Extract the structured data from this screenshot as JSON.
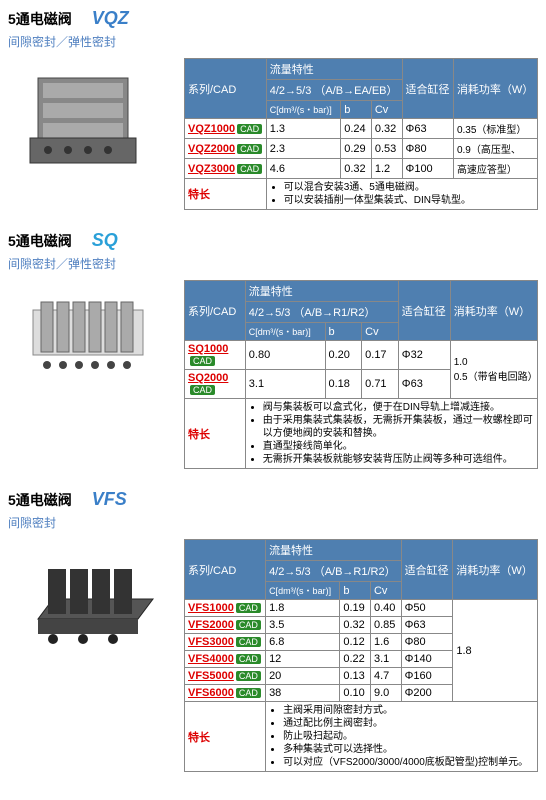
{
  "sections": [
    {
      "title_cn": "5通电磁阀",
      "title_en": "VQZ",
      "title_en_color": "#3a7fc8",
      "subtitle": "间隙密封／弹性密封",
      "subheader": "4/2→5/3 （A/B→EA/EB）",
      "cols": {
        "h1": "系列/CAD",
        "h2": "流量特性",
        "h3": "适合缸径",
        "h4": "消耗功率（W）",
        "sub1": "C[dm³/(s・bar)]",
        "sub2": "b",
        "sub3": "Cv"
      },
      "rows": [
        {
          "series": "VQZ1000",
          "c": "1.3",
          "b": "0.24",
          "cv": "0.32",
          "dia": "Φ63",
          "pw": "0.35（标准型）"
        },
        {
          "series": "VQZ2000",
          "c": "2.3",
          "b": "0.29",
          "cv": "0.53",
          "dia": "Φ80",
          "pw": "0.9（高压型、"
        },
        {
          "series": "VQZ3000",
          "c": "4.6",
          "b": "0.32",
          "cv": "1.2",
          "dia": "Φ100",
          "pw": "高速应答型）"
        }
      ],
      "feat_label": "特长",
      "features": [
        "可以混合安装3通、5通电磁阀。",
        "可以安装插削一体型集装式、DIN导轨型。"
      ]
    },
    {
      "title_cn": "5通电磁阀",
      "title_en": "SQ",
      "title_en_color": "#2aa0d8",
      "subtitle": "间隙密封／弹性密封",
      "subheader": "4/2→5/3 （A/B→R1/R2）",
      "cols": {
        "h1": "系列/CAD",
        "h2": "流量特性",
        "h3": "适合缸径",
        "h4": "消耗功率（W）",
        "sub1": "C[dm³/(s・bar)]",
        "sub2": "b",
        "sub3": "Cv"
      },
      "rows": [
        {
          "series": "SQ1000",
          "c": "0.80",
          "b": "0.20",
          "cv": "0.17",
          "dia": "Φ32",
          "pw": ""
        },
        {
          "series": "SQ2000",
          "c": "3.1",
          "b": "0.18",
          "cv": "0.71",
          "dia": "Φ63",
          "pw": "1.0<br>0.5（带省电回路）"
        }
      ],
      "feat_label": "特长",
      "features": [
        "阀与集装板可以盒式化，便于在DIN导轨上增减连接。",
        "由于采用集装式集装板，无需拆开集装板，通过一枚螺栓即可以方便地阀的安装和替换。",
        "直通型接线简单化。",
        "无需拆开集装板就能够安装背压防止阀等多种可选组件。"
      ]
    },
    {
      "title_cn": "5通电磁阀",
      "title_en": "VFS",
      "title_en_color": "#3a7fc8",
      "subtitle": "间隙密封",
      "subheader": "4/2→5/3 （A/B→R1/R2）",
      "cols": {
        "h1": "系列/CAD",
        "h2": "流量特性",
        "h3": "适合缸径",
        "h4": "消耗功率（W）",
        "sub1": "C[dm³/(s・bar)]",
        "sub2": "b",
        "sub3": "Cv"
      },
      "rows": [
        {
          "series": "VFS1000",
          "c": "1.8",
          "b": "0.19",
          "cv": "0.40",
          "dia": "Φ50"
        },
        {
          "series": "VFS2000",
          "c": "3.5",
          "b": "0.32",
          "cv": "0.85",
          "dia": "Φ63"
        },
        {
          "series": "VFS3000",
          "c": "6.8",
          "b": "0.12",
          "cv": "1.6",
          "dia": "Φ80"
        },
        {
          "series": "VFS4000",
          "c": "12",
          "b": "0.22",
          "cv": "3.1",
          "dia": "Φ140"
        },
        {
          "series": "VFS5000",
          "c": "20",
          "b": "0.13",
          "cv": "4.7",
          "dia": "Φ160"
        },
        {
          "series": "VFS6000",
          "c": "38",
          "b": "0.10",
          "cv": "9.0",
          "dia": "Φ200"
        }
      ],
      "power": "1.8",
      "feat_label": "特长",
      "features": [
        "主阀采用间隙密封方式。",
        "通过配比例主阀密封。",
        "防止吸扫起动。",
        "多种集装式可以选择性。",
        "可以对应（VFS2000/3000/4000底板配管型)控制单元。"
      ]
    }
  ]
}
